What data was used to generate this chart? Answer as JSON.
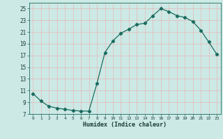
{
  "x": [
    0,
    1,
    2,
    3,
    4,
    5,
    6,
    7,
    8,
    9,
    10,
    11,
    12,
    13,
    14,
    15,
    16,
    17,
    18,
    19,
    20,
    21,
    22,
    23
  ],
  "y": [
    10.5,
    9.2,
    8.3,
    8.0,
    7.8,
    7.6,
    7.5,
    7.5,
    12.2,
    17.5,
    19.5,
    20.8,
    21.5,
    22.3,
    22.5,
    23.8,
    25.0,
    24.5,
    23.8,
    23.5,
    22.8,
    21.3,
    19.3,
    17.2
  ],
  "line_color": "#1a6b5e",
  "bg_color": "#cce9e5",
  "grid_color": "#afd4cf",
  "xlabel": "Humidex (Indice chaleur)",
  "ylim": [
    7,
    26
  ],
  "xlim": [
    -0.5,
    23.5
  ],
  "yticks": [
    7,
    9,
    11,
    13,
    15,
    17,
    19,
    21,
    23,
    25
  ],
  "xticks": [
    0,
    1,
    2,
    3,
    4,
    5,
    6,
    7,
    8,
    9,
    10,
    11,
    12,
    13,
    14,
    15,
    16,
    17,
    18,
    19,
    20,
    21,
    22,
    23
  ]
}
